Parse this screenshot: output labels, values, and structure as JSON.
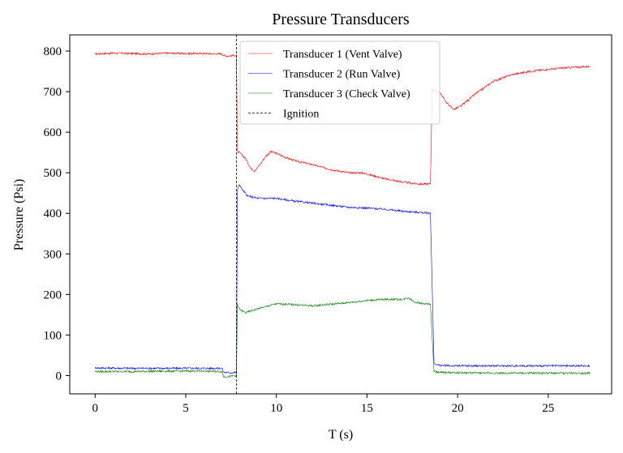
{
  "chart_data": {
    "type": "line",
    "title": "Pressure Transducers",
    "xlabel": "T (s)",
    "ylabel": "Pressure (Psi)",
    "xlim": [
      -1.4,
      28.5
    ],
    "ylim": [
      -45,
      840
    ],
    "xticks": [
      0,
      5,
      10,
      15,
      20,
      25
    ],
    "yticks": [
      0,
      100,
      200,
      300,
      400,
      500,
      600,
      700,
      800
    ],
    "grid": false,
    "legend_position": "top-right",
    "series": [
      {
        "name": "Transducer 1 (Vent Valve)",
        "color": "#ff0000",
        "points": [
          [
            0,
            793
          ],
          [
            1,
            795
          ],
          [
            2,
            794
          ],
          [
            3,
            793
          ],
          [
            4,
            795
          ],
          [
            5,
            794
          ],
          [
            6,
            794
          ],
          [
            7,
            793
          ],
          [
            7.1,
            789
          ],
          [
            7.4,
            788
          ],
          [
            7.8,
            790
          ],
          [
            7.85,
            552
          ],
          [
            8.0,
            548
          ],
          [
            8.3,
            535
          ],
          [
            8.6,
            510
          ],
          [
            8.8,
            505
          ],
          [
            9.1,
            520
          ],
          [
            9.4,
            540
          ],
          [
            9.7,
            552
          ],
          [
            10.0,
            548
          ],
          [
            10.5,
            538
          ],
          [
            11,
            530
          ],
          [
            12,
            520
          ],
          [
            13,
            508
          ],
          [
            14,
            500
          ],
          [
            14.7,
            500
          ],
          [
            15,
            497
          ],
          [
            16,
            485
          ],
          [
            17,
            477
          ],
          [
            17.5,
            474
          ],
          [
            18,
            472
          ],
          [
            18.5,
            473
          ],
          [
            18.6,
            705
          ],
          [
            19.0,
            700
          ],
          [
            19.4,
            672
          ],
          [
            19.8,
            656
          ],
          [
            20.2,
            665
          ],
          [
            21,
            695
          ],
          [
            22,
            726
          ],
          [
            23,
            742
          ],
          [
            24,
            750
          ],
          [
            25,
            755
          ],
          [
            26,
            759
          ],
          [
            27.3,
            762
          ]
        ]
      },
      {
        "name": "Transducer 2 (Run Valve)",
        "color": "#0000ff",
        "points": [
          [
            0,
            19
          ],
          [
            2,
            18
          ],
          [
            4,
            18
          ],
          [
            6,
            18
          ],
          [
            7.0,
            18
          ],
          [
            7.1,
            8
          ],
          [
            7.5,
            7
          ],
          [
            7.8,
            8
          ],
          [
            7.85,
            455
          ],
          [
            7.95,
            472
          ],
          [
            8.1,
            460
          ],
          [
            8.4,
            443
          ],
          [
            9,
            437
          ],
          [
            10,
            437
          ],
          [
            11,
            430
          ],
          [
            12,
            425
          ],
          [
            13,
            420
          ],
          [
            14,
            415
          ],
          [
            15,
            413
          ],
          [
            16,
            410
          ],
          [
            17,
            405
          ],
          [
            18,
            402
          ],
          [
            18.5,
            400
          ],
          [
            18.7,
            30
          ],
          [
            19,
            25
          ],
          [
            20,
            24
          ],
          [
            22,
            24
          ],
          [
            24,
            24
          ],
          [
            26,
            24
          ],
          [
            27.3,
            24
          ]
        ]
      },
      {
        "name": "Transducer 3 (Check Valve)",
        "color": "#008000",
        "points": [
          [
            0,
            10
          ],
          [
            2,
            10
          ],
          [
            4,
            11
          ],
          [
            6,
            11
          ],
          [
            7.0,
            10
          ],
          [
            7.1,
            -3
          ],
          [
            7.5,
            -2
          ],
          [
            7.8,
            0
          ],
          [
            7.85,
            175
          ],
          [
            8.0,
            162
          ],
          [
            8.3,
            155
          ],
          [
            9,
            165
          ],
          [
            10,
            177
          ],
          [
            11,
            175
          ],
          [
            12,
            172
          ],
          [
            13,
            176
          ],
          [
            14,
            180
          ],
          [
            15,
            185
          ],
          [
            16,
            188
          ],
          [
            17,
            188
          ],
          [
            17.3,
            192
          ],
          [
            17.6,
            182
          ],
          [
            18,
            178
          ],
          [
            18.5,
            176
          ],
          [
            18.7,
            10
          ],
          [
            19,
            8
          ],
          [
            20,
            7
          ],
          [
            22,
            6
          ],
          [
            24,
            6
          ],
          [
            26,
            6
          ],
          [
            27.3,
            6
          ]
        ]
      },
      {
        "name": "Ignition",
        "color": "#000000",
        "style": "dashed",
        "vertical_x": 7.8
      }
    ]
  }
}
